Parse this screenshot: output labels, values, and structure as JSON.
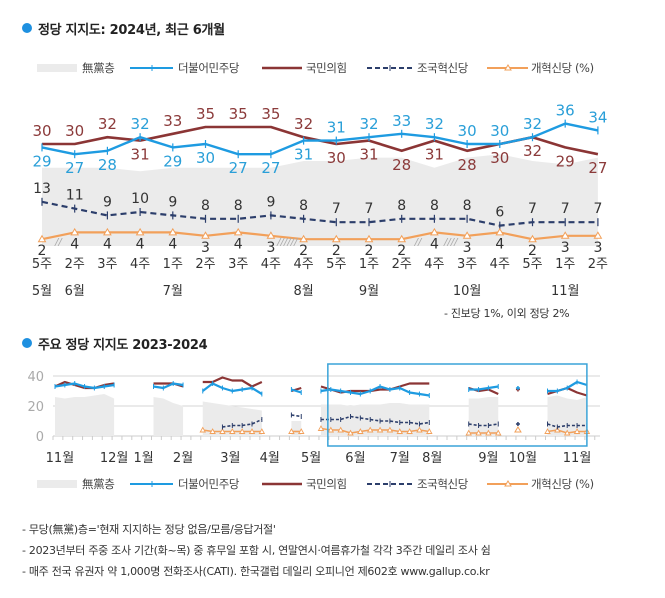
{
  "colors": {
    "accent": "#1e90e0",
    "minjoo": "#1e9be1",
    "ppp": "#8b3535",
    "rebuilding": "#2c3e6b",
    "reform": "#f2a05a",
    "nonpartisan": "#ebebeb",
    "grid": "#d5d5d5",
    "highlight_box": "#3aa3d8"
  },
  "section1": {
    "title": "정당 지지도: 2024년, 최근 6개월"
  },
  "section2": {
    "title": "주요 정당 지지도 2023-2024"
  },
  "legend": {
    "nonpartisan": "無黨층",
    "minjoo": "더불어민주당",
    "ppp": "국민의힘",
    "rebuilding": "조국혁신당",
    "reform": "개혁신당 (%)"
  },
  "chart_data": [
    {
      "type": "line",
      "title": "정당 지지도: 2024년, 최근 6개월",
      "xlabel": "",
      "ylabel": "%",
      "ylim": [
        0,
        38
      ],
      "grid": false,
      "legend_position": "top",
      "x_weeks": [
        "5주",
        "2주",
        "3주",
        "4주",
        "1주",
        "2주",
        "3주",
        "4주",
        "4주",
        "5주",
        "1주",
        "2주",
        "4주",
        "3주",
        "4주",
        "5주",
        "1주",
        "2주"
      ],
      "x_months": [
        {
          "index": 0,
          "label": "5월"
        },
        {
          "index": 1,
          "label": "6월"
        },
        {
          "index": 4,
          "label": "7월"
        },
        {
          "index": 8,
          "label": "8월"
        },
        {
          "index": 10,
          "label": "9월"
        },
        {
          "index": 13,
          "label": "10월"
        },
        {
          "index": 16,
          "label": "11월"
        }
      ],
      "breaks": [
        {
          "after_index": 0,
          "mark": "//"
        },
        {
          "after_index": 7,
          "mark": "//////"
        },
        {
          "after_index": 11,
          "mark": "//"
        },
        {
          "after_index": 12,
          "mark": "////"
        }
      ],
      "series": [
        {
          "key": "nonpartisan",
          "name": "無黨층",
          "style": "area",
          "estimated": true,
          "values": [
            23,
            23,
            23,
            22,
            23,
            23,
            23,
            23,
            25,
            25,
            26,
            26,
            23,
            26,
            27,
            25,
            24,
            26
          ]
        },
        {
          "key": "minjoo",
          "name": "더불어민주당",
          "style": "line",
          "values": [
            29,
            27,
            28,
            32,
            29,
            30,
            27,
            27,
            31,
            31,
            32,
            33,
            32,
            30,
            30,
            32,
            36,
            34
          ]
        },
        {
          "key": "ppp",
          "name": "국민의힘",
          "style": "line",
          "values": [
            30,
            30,
            32,
            31,
            33,
            35,
            35,
            35,
            32,
            30,
            31,
            28,
            31,
            28,
            30,
            32,
            29,
            27
          ]
        },
        {
          "key": "rebuilding",
          "name": "조국혁신당",
          "style": "dashed",
          "values": [
            13,
            11,
            9,
            10,
            9,
            8,
            8,
            9,
            8,
            7,
            7,
            8,
            8,
            8,
            6,
            7,
            7,
            7
          ]
        },
        {
          "key": "reform",
          "name": "개혁신당",
          "style": "line-triangle",
          "values": [
            2,
            4,
            4,
            4,
            4,
            3,
            4,
            3,
            2,
            2,
            2,
            2,
            4,
            3,
            4,
            2,
            3,
            3
          ]
        }
      ],
      "annotation": "- 진보당 1%, 이외 정당 2%"
    },
    {
      "type": "line",
      "title": "주요 정당 지지도 2023-2024",
      "xlabel": "",
      "ylabel": "",
      "ylim": [
        0,
        40
      ],
      "yticks": [
        "0",
        "20",
        "40"
      ],
      "yticks_values": [
        0,
        20,
        40
      ],
      "grid": true,
      "legend_position": "bottom",
      "estimated": true,
      "x_unit": "week index (0 = 2023년 11월 초)",
      "x_months": [
        {
          "index": 0.5,
          "label": "11월"
        },
        {
          "index": 6,
          "label": "12월"
        },
        {
          "index": 9,
          "label": "1월"
        },
        {
          "index": 13,
          "label": "2월"
        },
        {
          "index": 17.8,
          "label": "3월"
        },
        {
          "index": 21.8,
          "label": "4월"
        },
        {
          "index": 26,
          "label": "5월"
        },
        {
          "index": 30.5,
          "label": "6월"
        },
        {
          "index": 35,
          "label": "7월"
        },
        {
          "index": 38.3,
          "label": "8월"
        },
        {
          "index": 44,
          "label": "9월"
        },
        {
          "index": 47.5,
          "label": "10월"
        },
        {
          "index": 53,
          "label": "11월"
        }
      ],
      "highlight_range": [
        27.7,
        54
      ],
      "segments": [
        {
          "start": 0,
          "nonpartisan": [
            26,
            25,
            26,
            26,
            27,
            28,
            25
          ],
          "minjoo": [
            33,
            34,
            35,
            33,
            32,
            33,
            34
          ],
          "ppp": [
            33,
            36,
            34,
            32,
            32,
            34,
            35
          ]
        },
        {
          "start": 10,
          "nonpartisan": [
            26,
            25,
            22,
            20
          ],
          "minjoo": [
            33,
            32,
            35,
            34
          ],
          "ppp": [
            35,
            35,
            35,
            33
          ]
        },
        {
          "start": 15,
          "nonpartisan": [
            23,
            22,
            21,
            20,
            19,
            18,
            17
          ],
          "minjoo": [
            30,
            35,
            32,
            30,
            31,
            32,
            28
          ],
          "ppp": [
            36,
            36,
            39,
            37,
            37,
            33,
            36
          ],
          "rebuilding": [
            null,
            null,
            6,
            7,
            7,
            8,
            11
          ],
          "reform": [
            4,
            3,
            3,
            3,
            3,
            3,
            3
          ]
        },
        {
          "start": 24,
          "nonpartisan": [
            10,
            10
          ],
          "minjoo": [
            31,
            29
          ],
          "ppp": [
            30,
            32
          ],
          "rebuilding": [
            14,
            13
          ],
          "reform": [
            3,
            3
          ]
        },
        {
          "start": 27,
          "nonpartisan": [
            21,
            21,
            21,
            20,
            21,
            21,
            21,
            22,
            22,
            21,
            21,
            21
          ],
          "minjoo": [
            30,
            31,
            30,
            29,
            28,
            30,
            33,
            31,
            32,
            29,
            28,
            27
          ],
          "ppp": [
            33,
            31,
            29,
            30,
            30,
            30,
            31,
            31,
            33,
            35,
            35,
            35
          ],
          "rebuilding": [
            11,
            11,
            11,
            13,
            12,
            11,
            10,
            10,
            9,
            9,
            8,
            9
          ],
          "reform": [
            5,
            4,
            4,
            2,
            3,
            4,
            4,
            4,
            3,
            3,
            4,
            3
          ]
        },
        {
          "start": 42,
          "nonpartisan": [
            25,
            25,
            26,
            26
          ],
          "minjoo": [
            31,
            31,
            32,
            33
          ],
          "ppp": [
            32,
            30,
            31,
            28
          ],
          "rebuilding": [
            8,
            7,
            7,
            8
          ],
          "reform": [
            2,
            2,
            2,
            2
          ]
        },
        {
          "start": 47,
          "minjoo": [
            32
          ],
          "ppp": [
            31
          ],
          "rebuilding": [
            8
          ],
          "reform": [
            4
          ]
        },
        {
          "start": 50,
          "nonpartisan": [
            26,
            27,
            25,
            24,
            26
          ],
          "minjoo": [
            30,
            30,
            32,
            36,
            34
          ],
          "ppp": [
            28,
            30,
            32,
            29,
            27
          ],
          "rebuilding": [
            8,
            6,
            7,
            7,
            7
          ],
          "reform": [
            3,
            4,
            2,
            3,
            3
          ]
        }
      ]
    }
  ],
  "notes": [
    "- 무당(無黨)층='현재 지지하는 정당 없음/모름/응답거절'",
    "- 2023년부터 주중 조사 기간(화~목) 중 휴무일 포함 시, 연말연시·여름휴가철 각각 3주간 데일리 조사 쉼",
    "- 매주 전국 유권자 약 1,000명 전화조사(CATI). 한국갤럽 데일리 오피니언 제602호 www.gallup.co.kr"
  ]
}
